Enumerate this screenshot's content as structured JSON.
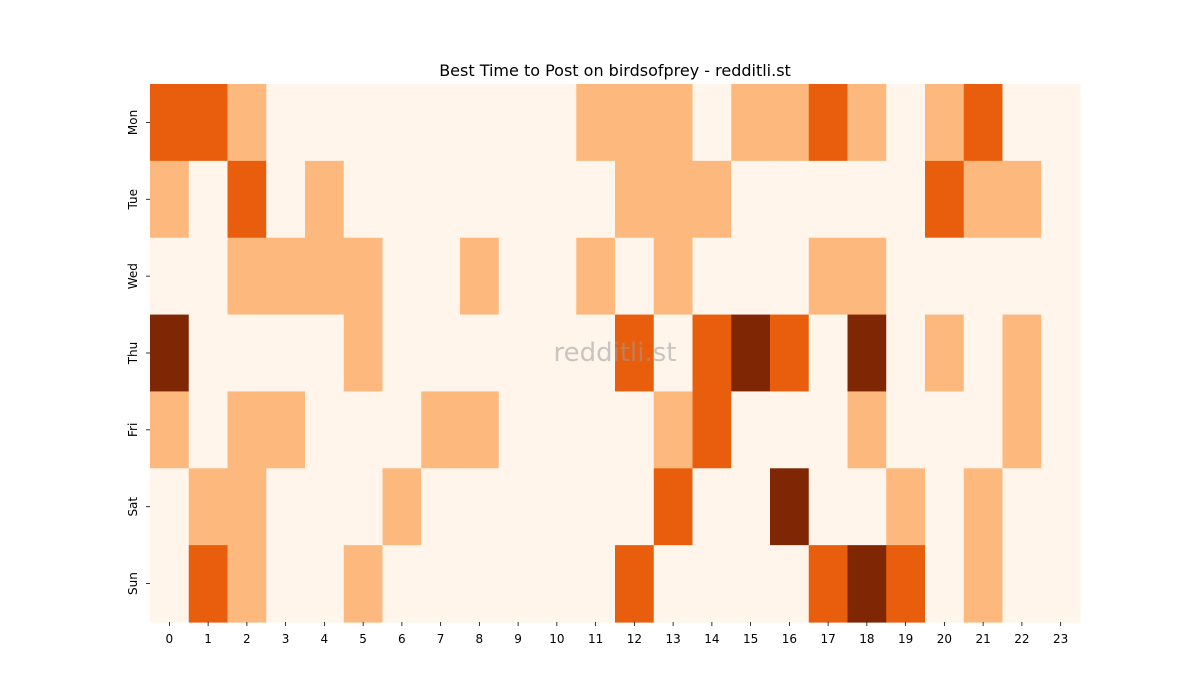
{
  "chart_data": {
    "type": "heatmap",
    "title": "Best Time to Post on birdsofprey - redditli.st",
    "watermark": "redditli.st",
    "xlabel": "",
    "ylabel": "",
    "x_categories": [
      "0",
      "1",
      "2",
      "3",
      "4",
      "5",
      "6",
      "7",
      "8",
      "9",
      "10",
      "11",
      "12",
      "13",
      "14",
      "15",
      "16",
      "17",
      "18",
      "19",
      "20",
      "21",
      "22",
      "23"
    ],
    "y_categories": [
      "Mon",
      "Tue",
      "Wed",
      "Thu",
      "Fri",
      "Sat",
      "Sun"
    ],
    "value_range": [
      0,
      3
    ],
    "colorscale": [
      "#fff5eb",
      "#fdb97d",
      "#e95e0d",
      "#7f2704"
    ],
    "values": [
      [
        2,
        2,
        1,
        0,
        0,
        0,
        0,
        0,
        0,
        0,
        0,
        1,
        1,
        1,
        0,
        1,
        1,
        2,
        1,
        0,
        1,
        2,
        0,
        0
      ],
      [
        1,
        0,
        2,
        0,
        1,
        0,
        0,
        0,
        0,
        0,
        0,
        0,
        1,
        1,
        1,
        0,
        0,
        0,
        0,
        0,
        2,
        1,
        1,
        0
      ],
      [
        0,
        0,
        1,
        1,
        1,
        1,
        0,
        0,
        1,
        0,
        0,
        1,
        0,
        1,
        0,
        0,
        0,
        1,
        1,
        0,
        0,
        0,
        0,
        0
      ],
      [
        3,
        0,
        0,
        0,
        0,
        1,
        0,
        0,
        0,
        0,
        0,
        0,
        2,
        0,
        2,
        3,
        2,
        0,
        3,
        0,
        1,
        0,
        1,
        0
      ],
      [
        1,
        0,
        1,
        1,
        0,
        0,
        0,
        1,
        1,
        0,
        0,
        0,
        0,
        1,
        2,
        0,
        0,
        0,
        1,
        0,
        0,
        0,
        1,
        0
      ],
      [
        0,
        1,
        1,
        0,
        0,
        0,
        1,
        0,
        0,
        0,
        0,
        0,
        0,
        2,
        0,
        0,
        3,
        0,
        0,
        1,
        0,
        1,
        0,
        0
      ],
      [
        0,
        2,
        1,
        0,
        0,
        1,
        0,
        0,
        0,
        0,
        0,
        0,
        2,
        0,
        0,
        0,
        0,
        2,
        3,
        2,
        0,
        1,
        0,
        0
      ]
    ]
  }
}
